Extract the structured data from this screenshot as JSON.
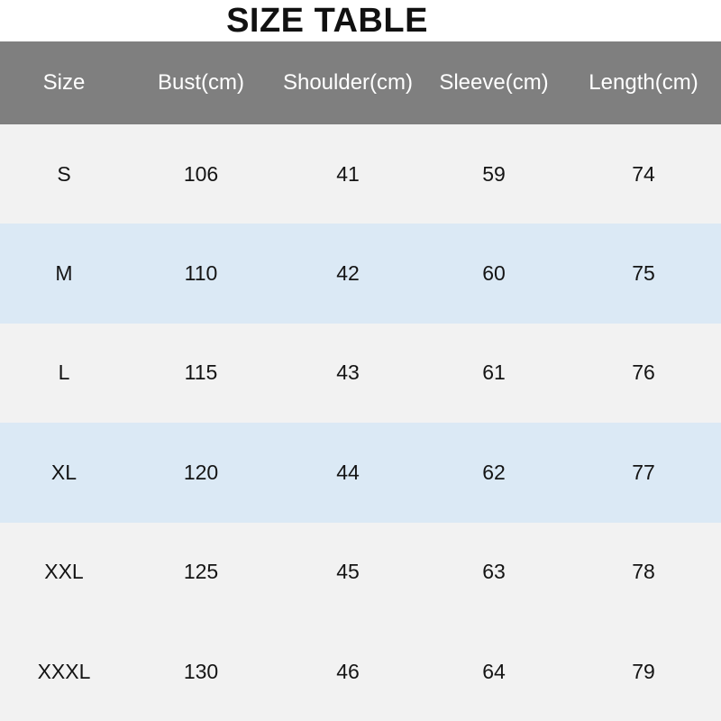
{
  "title": "SIZE TABLE",
  "table": {
    "columns": [
      "Size",
      "Bust(cm)",
      "Shoulder(cm)",
      "Sleeve(cm)",
      "Length(cm)"
    ],
    "rows": [
      [
        "S",
        "106",
        "41",
        "59",
        "74"
      ],
      [
        "M",
        "110",
        "42",
        "60",
        "75"
      ],
      [
        "L",
        "115",
        "43",
        "61",
        "76"
      ],
      [
        "XL",
        "120",
        "44",
        "62",
        "77"
      ],
      [
        "XXL",
        "125",
        "45",
        "63",
        "78"
      ],
      [
        "XXXL",
        "130",
        "46",
        "64",
        "79"
      ]
    ],
    "row_styles": [
      "light",
      "blue",
      "light",
      "blue",
      "light",
      "light"
    ],
    "colors": {
      "header_bg": "#7f7f7f",
      "header_text": "#ffffff",
      "row_light": "#f2f2f2",
      "row_blue": "#dbe9f5"
    }
  }
}
